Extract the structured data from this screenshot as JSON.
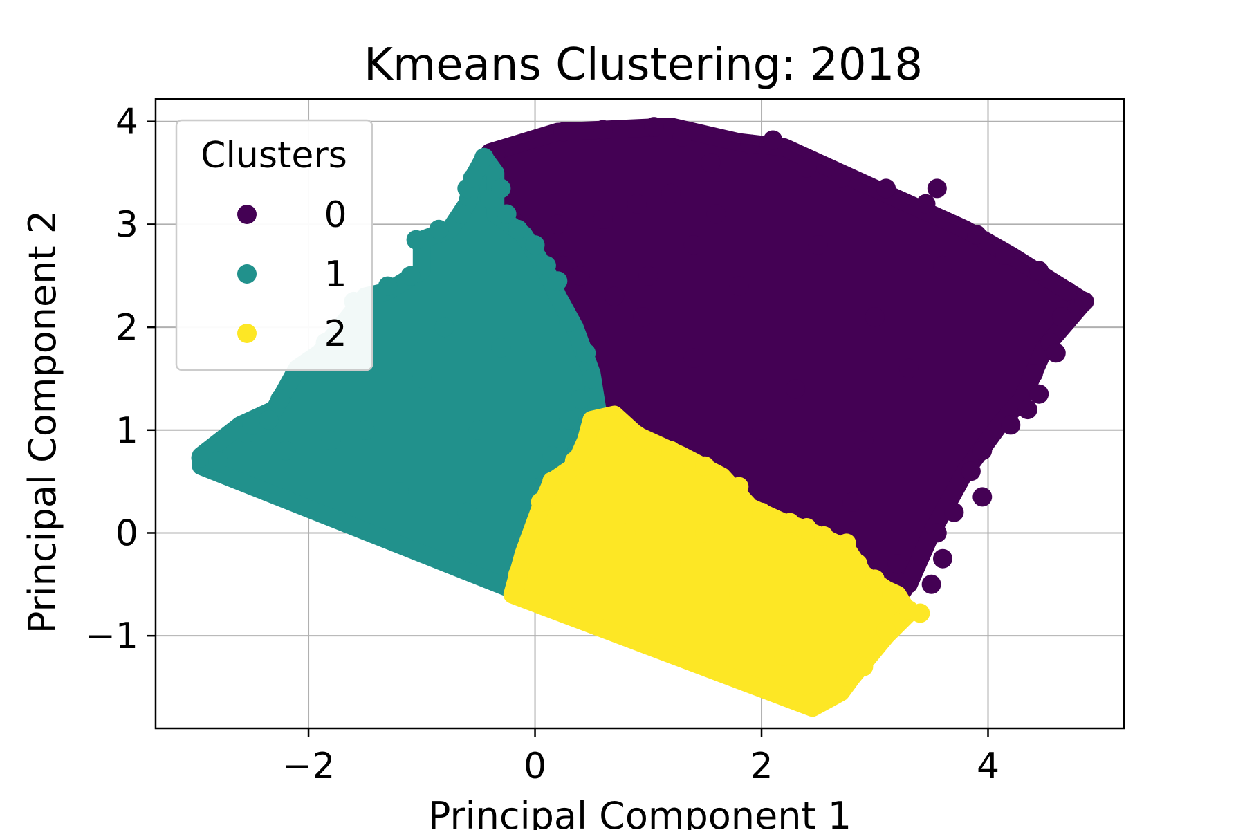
{
  "chart_data": {
    "type": "scatter",
    "title": "Kmeans Clustering: 2018",
    "xlabel": "Principal Component 1",
    "ylabel": "Principal Component 2",
    "xlim": [
      -3.35,
      5.2
    ],
    "ylim": [
      -1.9,
      4.22
    ],
    "xticks": [
      -2,
      0,
      2,
      4
    ],
    "yticks": [
      -1,
      0,
      1,
      2,
      3,
      4
    ],
    "xtick_labels": [
      "−2",
      "0",
      "2",
      "4"
    ],
    "ytick_labels": [
      "−1",
      "0",
      "1",
      "2",
      "3",
      "4"
    ],
    "grid": true,
    "legend": {
      "title": "Clusters",
      "placement": "top-left",
      "entries": [
        "0",
        "1",
        "2"
      ]
    },
    "series": [
      {
        "name": "0",
        "color": "#440154",
        "region": [
          [
            -0.4,
            3.7
          ],
          [
            0.2,
            3.9
          ],
          [
            1.2,
            3.95
          ],
          [
            1.8,
            3.8
          ],
          [
            2.2,
            3.75
          ],
          [
            3.0,
            3.35
          ],
          [
            3.8,
            2.95
          ],
          [
            4.2,
            2.7
          ],
          [
            4.85,
            2.25
          ],
          [
            4.5,
            1.8
          ],
          [
            4.3,
            1.3
          ],
          [
            4.1,
            1.05
          ],
          [
            3.8,
            0.6
          ],
          [
            3.5,
            0.0
          ],
          [
            3.3,
            -0.5
          ],
          [
            3.0,
            -0.5
          ],
          [
            2.6,
            -0.15
          ],
          [
            2.25,
            0.05
          ],
          [
            1.5,
            0.55
          ],
          [
            0.9,
            0.95
          ],
          [
            0.6,
            1.1
          ],
          [
            0.4,
            1.6
          ],
          [
            0.2,
            2.3
          ],
          [
            0.0,
            2.8
          ],
          [
            -0.4,
            3.3
          ]
        ],
        "points": [
          [
            -0.35,
            3.68
          ],
          [
            0.25,
            3.9
          ],
          [
            0.6,
            3.92
          ],
          [
            1.05,
            3.95
          ],
          [
            1.3,
            3.85
          ],
          [
            1.55,
            3.6
          ],
          [
            1.9,
            3.78
          ],
          [
            2.1,
            3.82
          ],
          [
            2.4,
            3.55
          ],
          [
            2.7,
            3.45
          ],
          [
            3.1,
            3.35
          ],
          [
            3.45,
            3.2
          ],
          [
            3.55,
            3.35
          ],
          [
            3.9,
            2.9
          ],
          [
            4.15,
            2.7
          ],
          [
            4.45,
            2.55
          ],
          [
            4.7,
            2.35
          ],
          [
            4.85,
            2.25
          ],
          [
            4.65,
            2.1
          ],
          [
            4.55,
            1.85
          ],
          [
            4.6,
            1.75
          ],
          [
            4.4,
            1.55
          ],
          [
            4.45,
            1.35
          ],
          [
            4.35,
            1.2
          ],
          [
            4.2,
            1.05
          ],
          [
            3.95,
            0.8
          ],
          [
            3.85,
            0.6
          ],
          [
            3.95,
            0.35
          ],
          [
            3.7,
            0.2
          ],
          [
            3.55,
            0.0
          ],
          [
            3.6,
            -0.25
          ],
          [
            3.5,
            -0.5
          ],
          [
            3.25,
            -0.55
          ],
          [
            1.2,
            3.3
          ],
          [
            0.9,
            3.2
          ],
          [
            1.6,
            3.1
          ],
          [
            0.6,
            3.05
          ],
          [
            0.2,
            3.0
          ],
          [
            1.0,
            2.5
          ],
          [
            0.7,
            2.3
          ],
          [
            0.95,
            2.1
          ],
          [
            0.4,
            2.5
          ],
          [
            0.2,
            2.2
          ],
          [
            0.35,
            1.85
          ],
          [
            0.5,
            1.6
          ],
          [
            0.25,
            2.6
          ],
          [
            1.4,
            1.7
          ],
          [
            2.5,
            2.8
          ],
          [
            3.3,
            1.6
          ],
          [
            2.9,
            0.9
          ],
          [
            2.3,
            1.4
          ],
          [
            1.8,
            2.4
          ],
          [
            3.0,
            2.1
          ],
          [
            1.4,
            2.8
          ],
          [
            3.6,
            2.6
          ],
          [
            2.0,
            1.0
          ],
          [
            2.8,
            0.3
          ],
          [
            3.2,
            -0.3
          ],
          [
            1.7,
            0.55
          ]
        ]
      },
      {
        "name": "1",
        "color": "#21918c",
        "region": [
          [
            -2.95,
            0.75
          ],
          [
            -2.6,
            1.05
          ],
          [
            -2.3,
            1.2
          ],
          [
            -2.1,
            1.6
          ],
          [
            -1.9,
            1.75
          ],
          [
            -1.5,
            2.3
          ],
          [
            -1.3,
            2.35
          ],
          [
            -1.0,
            2.55
          ],
          [
            -1.0,
            2.85
          ],
          [
            -0.75,
            2.95
          ],
          [
            -0.6,
            3.2
          ],
          [
            -0.55,
            3.45
          ],
          [
            -0.45,
            3.65
          ],
          [
            -0.35,
            3.5
          ],
          [
            -0.35,
            3.1
          ],
          [
            -0.1,
            2.9
          ],
          [
            0.1,
            2.55
          ],
          [
            0.2,
            2.3
          ],
          [
            0.35,
            2.0
          ],
          [
            0.5,
            1.55
          ],
          [
            0.55,
            1.2
          ],
          [
            0.3,
            0.65
          ],
          [
            0.1,
            0.3
          ],
          [
            0.0,
            0.0
          ],
          [
            -0.15,
            -0.3
          ],
          [
            -0.2,
            -0.55
          ],
          [
            -2.95,
            0.65
          ]
        ],
        "points": [
          [
            -2.95,
            0.73
          ],
          [
            -2.8,
            0.7
          ],
          [
            -2.55,
            0.97
          ],
          [
            -2.5,
            1.05
          ],
          [
            -2.35,
            1.1
          ],
          [
            -2.25,
            1.3
          ],
          [
            -2.05,
            1.6
          ],
          [
            -1.85,
            1.85
          ],
          [
            -1.6,
            2.25
          ],
          [
            -1.3,
            2.4
          ],
          [
            -1.1,
            2.5
          ],
          [
            -1.05,
            2.85
          ],
          [
            -0.85,
            2.95
          ],
          [
            -0.65,
            3.1
          ],
          [
            -0.6,
            3.35
          ],
          [
            -0.55,
            3.45
          ],
          [
            -0.45,
            3.65
          ],
          [
            -0.4,
            3.25
          ],
          [
            -0.3,
            3.35
          ],
          [
            -0.25,
            3.1
          ],
          [
            -0.15,
            2.95
          ],
          [
            0.0,
            2.8
          ],
          [
            0.1,
            2.6
          ],
          [
            0.2,
            2.45
          ],
          [
            0.3,
            2.05
          ],
          [
            0.45,
            1.75
          ],
          [
            0.5,
            1.5
          ],
          [
            0.4,
            1.3
          ],
          [
            0.3,
            1.1
          ],
          [
            0.15,
            0.75
          ],
          [
            0.05,
            0.45
          ],
          [
            0.0,
            0.15
          ],
          [
            -0.1,
            -0.1
          ],
          [
            -0.15,
            -0.35
          ],
          [
            -0.2,
            -0.55
          ],
          [
            -1.0,
            1.5
          ],
          [
            -1.5,
            1.0
          ],
          [
            -0.5,
            1.0
          ],
          [
            -0.8,
            2.0
          ],
          [
            -1.8,
            0.9
          ],
          [
            -2.2,
            0.8
          ],
          [
            -0.3,
            1.8
          ],
          [
            -0.6,
            0.2
          ],
          [
            -1.2,
            0.4
          ]
        ]
      },
      {
        "name": "2",
        "color": "#fde725",
        "region": [
          [
            0.5,
            1.1
          ],
          [
            0.7,
            1.15
          ],
          [
            0.9,
            0.95
          ],
          [
            1.3,
            0.75
          ],
          [
            1.65,
            0.55
          ],
          [
            1.9,
            0.25
          ],
          [
            2.2,
            0.1
          ],
          [
            2.35,
            0.05
          ],
          [
            2.5,
            -0.02
          ],
          [
            2.75,
            -0.15
          ],
          [
            2.9,
            -0.4
          ],
          [
            3.1,
            -0.55
          ],
          [
            3.2,
            -0.6
          ],
          [
            3.3,
            -0.78
          ],
          [
            3.1,
            -1.0
          ],
          [
            2.95,
            -1.2
          ],
          [
            2.8,
            -1.4
          ],
          [
            2.7,
            -1.55
          ],
          [
            2.45,
            -1.7
          ],
          [
            -0.2,
            -0.6
          ],
          [
            -0.1,
            -0.2
          ],
          [
            0.05,
            0.25
          ],
          [
            0.15,
            0.5
          ],
          [
            0.35,
            0.65
          ],
          [
            0.45,
            0.9
          ]
        ],
        "points": [
          [
            0.55,
            1.1
          ],
          [
            0.7,
            1.05
          ],
          [
            0.9,
            0.95
          ],
          [
            1.2,
            0.8
          ],
          [
            1.5,
            0.65
          ],
          [
            1.8,
            0.45
          ],
          [
            2.0,
            0.2
          ],
          [
            2.25,
            0.1
          ],
          [
            2.4,
            0.05
          ],
          [
            2.55,
            -0.03
          ],
          [
            2.75,
            -0.1
          ],
          [
            2.85,
            -0.3
          ],
          [
            3.0,
            -0.45
          ],
          [
            3.15,
            -0.6
          ],
          [
            3.3,
            -0.75
          ],
          [
            3.4,
            -0.78
          ],
          [
            3.1,
            -0.95
          ],
          [
            2.95,
            -1.15
          ],
          [
            2.9,
            -1.3
          ],
          [
            2.75,
            -1.4
          ],
          [
            2.65,
            -1.55
          ],
          [
            2.45,
            -1.65
          ],
          [
            0.05,
            0.3
          ],
          [
            0.15,
            0.5
          ],
          [
            0.35,
            0.7
          ],
          [
            0.3,
            0.4
          ],
          [
            -0.05,
            -0.2
          ],
          [
            -0.15,
            -0.4
          ],
          [
            1.2,
            -0.3
          ],
          [
            1.8,
            -0.6
          ],
          [
            2.2,
            -1.2
          ],
          [
            0.8,
            0.0
          ],
          [
            1.5,
            0.0
          ]
        ]
      }
    ]
  }
}
